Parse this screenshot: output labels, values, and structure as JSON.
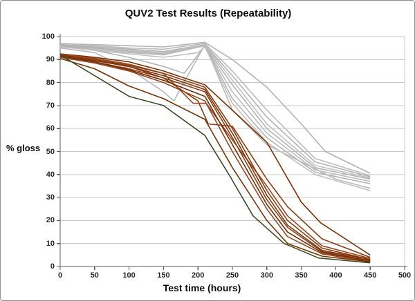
{
  "chart_data": {
    "type": "line",
    "title": "QUV2 Test Results (Repeatability)",
    "xlabel": "Test time (hours)",
    "ylabel": "% gloss",
    "xlim": [
      0,
      500
    ],
    "ylim": [
      0,
      100
    ],
    "xticks": [
      0,
      50,
      100,
      150,
      200,
      250,
      300,
      350,
      400,
      450,
      500
    ],
    "yticks": [
      0,
      10,
      20,
      30,
      40,
      50,
      60,
      70,
      80,
      90,
      100
    ],
    "grid": "horizontal-only",
    "legend": "none",
    "colors": {
      "gridline": "#c8c8c8",
      "axis": "#595959",
      "plot_border": "#c8c8c8",
      "gray_group": "#b5b5b5",
      "brown_group": "#8c3c10",
      "green_line": "#3c4b21"
    },
    "series": [
      {
        "id": "gray-1",
        "group": "gray",
        "color": "#b2b2b2",
        "points": [
          [
            0,
            97
          ],
          [
            50,
            96.5
          ],
          [
            100,
            96
          ],
          [
            150,
            95.5
          ],
          [
            210,
            97.5
          ],
          [
            250,
            90
          ],
          [
            300,
            78
          ],
          [
            350,
            62
          ],
          [
            385,
            50
          ],
          [
            450,
            40.5
          ]
        ]
      },
      {
        "id": "gray-2",
        "group": "gray",
        "color": "#bcbcbc",
        "points": [
          [
            0,
            96.5
          ],
          [
            50,
            96
          ],
          [
            100,
            95
          ],
          [
            150,
            94.5
          ],
          [
            210,
            97
          ],
          [
            250,
            85
          ],
          [
            300,
            68
          ],
          [
            370,
            47
          ],
          [
            450,
            39.5
          ]
        ]
      },
      {
        "id": "gray-3",
        "group": "gray",
        "color": "#b2b2b2",
        "points": [
          [
            0,
            96.5
          ],
          [
            50,
            95.5
          ],
          [
            100,
            94.5
          ],
          [
            150,
            93.5
          ],
          [
            210,
            96.5
          ],
          [
            250,
            83
          ],
          [
            300,
            65
          ],
          [
            370,
            45.5
          ],
          [
            450,
            39
          ]
        ]
      },
      {
        "id": "gray-4",
        "group": "gray",
        "color": "#c0c0c0",
        "points": [
          [
            0,
            96
          ],
          [
            50,
            95
          ],
          [
            100,
            94
          ],
          [
            150,
            93
          ],
          [
            210,
            96.5
          ],
          [
            250,
            81
          ],
          [
            300,
            62
          ],
          [
            370,
            44
          ],
          [
            450,
            38.5
          ]
        ]
      },
      {
        "id": "gray-5",
        "group": "gray",
        "color": "#b2b2b2",
        "points": [
          [
            0,
            96
          ],
          [
            50,
            95
          ],
          [
            100,
            93.5
          ],
          [
            150,
            92.5
          ],
          [
            210,
            96
          ],
          [
            250,
            79
          ],
          [
            300,
            60
          ],
          [
            370,
            43
          ],
          [
            450,
            38
          ]
        ]
      },
      {
        "id": "gray-6",
        "group": "gray",
        "color": "#bcbcbc",
        "points": [
          [
            0,
            95.5
          ],
          [
            50,
            94.5
          ],
          [
            100,
            93
          ],
          [
            150,
            92
          ],
          [
            210,
            96
          ],
          [
            250,
            76
          ],
          [
            300,
            58
          ],
          [
            370,
            42
          ],
          [
            450,
            37
          ]
        ]
      },
      {
        "id": "gray-7",
        "group": "gray",
        "color": "#b2b2b2",
        "points": [
          [
            0,
            96
          ],
          [
            50,
            94
          ],
          [
            100,
            91
          ],
          [
            150,
            87
          ],
          [
            180,
            84
          ],
          [
            210,
            96
          ],
          [
            250,
            73
          ],
          [
            300,
            56
          ],
          [
            370,
            41
          ],
          [
            450,
            36
          ]
        ]
      },
      {
        "id": "gray-8",
        "group": "gray",
        "color": "#b8b8b8",
        "points": [
          [
            0,
            95
          ],
          [
            50,
            93
          ],
          [
            100,
            86
          ],
          [
            150,
            76
          ],
          [
            165,
            72
          ],
          [
            210,
            96.5
          ],
          [
            250,
            68
          ],
          [
            300,
            53
          ],
          [
            400,
            38
          ],
          [
            450,
            34
          ]
        ]
      },
      {
        "id": "gray-9",
        "group": "gray",
        "color": "#c0c0c0",
        "points": [
          [
            0,
            95.5
          ],
          [
            50,
            94
          ],
          [
            100,
            92.5
          ],
          [
            150,
            91
          ],
          [
            200,
            93
          ],
          [
            210,
            95.5
          ],
          [
            250,
            71
          ],
          [
            300,
            54
          ],
          [
            370,
            40
          ],
          [
            450,
            33
          ]
        ]
      },
      {
        "id": "brown-1",
        "group": "brown",
        "color": "#7b3000",
        "points": [
          [
            0,
            92.5
          ],
          [
            50,
            91
          ],
          [
            100,
            89
          ],
          [
            150,
            85
          ],
          [
            210,
            79
          ],
          [
            250,
            68
          ],
          [
            300,
            54
          ],
          [
            350,
            28
          ],
          [
            378,
            19
          ],
          [
            450,
            5
          ]
        ]
      },
      {
        "id": "brown-2",
        "group": "brown",
        "color": "#8c3c10",
        "points": [
          [
            0,
            92
          ],
          [
            50,
            90
          ],
          [
            100,
            87
          ],
          [
            150,
            82
          ],
          [
            200,
            72
          ],
          [
            215,
            62
          ],
          [
            250,
            61
          ],
          [
            300,
            38
          ],
          [
            330,
            26
          ],
          [
            380,
            12
          ],
          [
            450,
            4
          ]
        ]
      },
      {
        "id": "brown-3",
        "group": "brown",
        "color": "#99441a",
        "points": [
          [
            0,
            92.5
          ],
          [
            50,
            90.5
          ],
          [
            100,
            88
          ],
          [
            150,
            84
          ],
          [
            193,
            71
          ],
          [
            212,
            71
          ],
          [
            250,
            55
          ],
          [
            300,
            35
          ],
          [
            330,
            22
          ],
          [
            380,
            9
          ],
          [
            450,
            3.5
          ]
        ]
      },
      {
        "id": "brown-4",
        "group": "brown",
        "color": "#8c3c10",
        "points": [
          [
            0,
            92
          ],
          [
            50,
            90
          ],
          [
            100,
            87.5
          ],
          [
            150,
            84
          ],
          [
            210,
            78
          ],
          [
            250,
            60
          ],
          [
            300,
            33
          ],
          [
            330,
            20
          ],
          [
            380,
            8
          ],
          [
            450,
            3
          ]
        ]
      },
      {
        "id": "brown-5",
        "group": "brown",
        "color": "#7b3508",
        "points": [
          [
            0,
            92
          ],
          [
            50,
            89.5
          ],
          [
            100,
            87
          ],
          [
            150,
            83
          ],
          [
            210,
            77
          ],
          [
            250,
            58
          ],
          [
            300,
            31
          ],
          [
            330,
            18
          ],
          [
            380,
            7
          ],
          [
            450,
            3
          ]
        ]
      },
      {
        "id": "brown-6",
        "group": "brown",
        "color": "#8c3c10",
        "points": [
          [
            0,
            91.5
          ],
          [
            50,
            89
          ],
          [
            100,
            86
          ],
          [
            150,
            82
          ],
          [
            210,
            76
          ],
          [
            250,
            56
          ],
          [
            300,
            29
          ],
          [
            330,
            17
          ],
          [
            380,
            6.5
          ],
          [
            450,
            2.5
          ]
        ]
      },
      {
        "id": "brown-7",
        "group": "brown",
        "color": "#6e2d06",
        "points": [
          [
            0,
            91.5
          ],
          [
            50,
            89
          ],
          [
            100,
            85.5
          ],
          [
            150,
            81
          ],
          [
            210,
            74
          ],
          [
            250,
            53
          ],
          [
            300,
            27
          ],
          [
            330,
            15
          ],
          [
            380,
            6
          ],
          [
            450,
            2.5
          ]
        ]
      },
      {
        "id": "brown-8",
        "group": "brown",
        "color": "#99441a",
        "points": [
          [
            0,
            91
          ],
          [
            50,
            88.5
          ],
          [
            100,
            85
          ],
          [
            150,
            80
          ],
          [
            210,
            72
          ],
          [
            250,
            50
          ],
          [
            300,
            25
          ],
          [
            330,
            13
          ],
          [
            380,
            5.5
          ],
          [
            450,
            2
          ]
        ]
      },
      {
        "id": "brown-9",
        "group": "brown",
        "color": "#7b3000",
        "points": [
          [
            0,
            90.5
          ],
          [
            50,
            86
          ],
          [
            100,
            78.5
          ],
          [
            150,
            73
          ],
          [
            210,
            64
          ],
          [
            250,
            43
          ],
          [
            300,
            20
          ],
          [
            330,
            10
          ],
          [
            380,
            4.5
          ],
          [
            450,
            2
          ]
        ]
      },
      {
        "id": "green-1",
        "group": "green",
        "color": "#3c4b21",
        "points": [
          [
            0,
            92
          ],
          [
            50,
            83
          ],
          [
            100,
            74
          ],
          [
            150,
            70
          ],
          [
            210,
            57
          ],
          [
            245,
            40
          ],
          [
            280,
            22
          ],
          [
            325,
            10
          ],
          [
            375,
            3.7
          ],
          [
            450,
            1.6
          ]
        ]
      }
    ]
  }
}
